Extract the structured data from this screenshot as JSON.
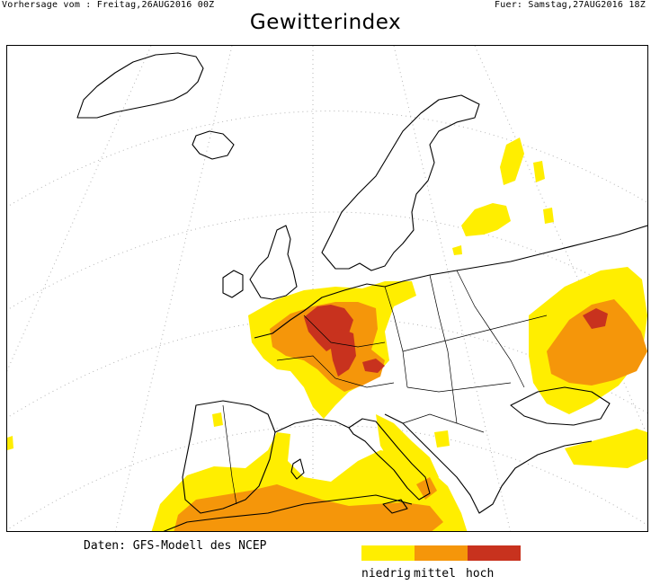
{
  "header": {
    "left": "Vorhersage vom : Freitag,26AUG2016 00Z",
    "right": "Fuer: Samstag,27AUG2016 18Z"
  },
  "title": "Gewitterindex",
  "credit": "Daten: GFS-Modell des NCEP",
  "legend": {
    "items": [
      {
        "label": "niedrig",
        "color": "#ffee00"
      },
      {
        "label": "mittel",
        "color": "#f5960a"
      },
      {
        "label": "hoch",
        "color": "#c8321e"
      }
    ]
  },
  "map": {
    "region": "Europe",
    "coastline_color": "#000000",
    "graticule_color": "#b4b4b4",
    "background": "#ffffff"
  }
}
